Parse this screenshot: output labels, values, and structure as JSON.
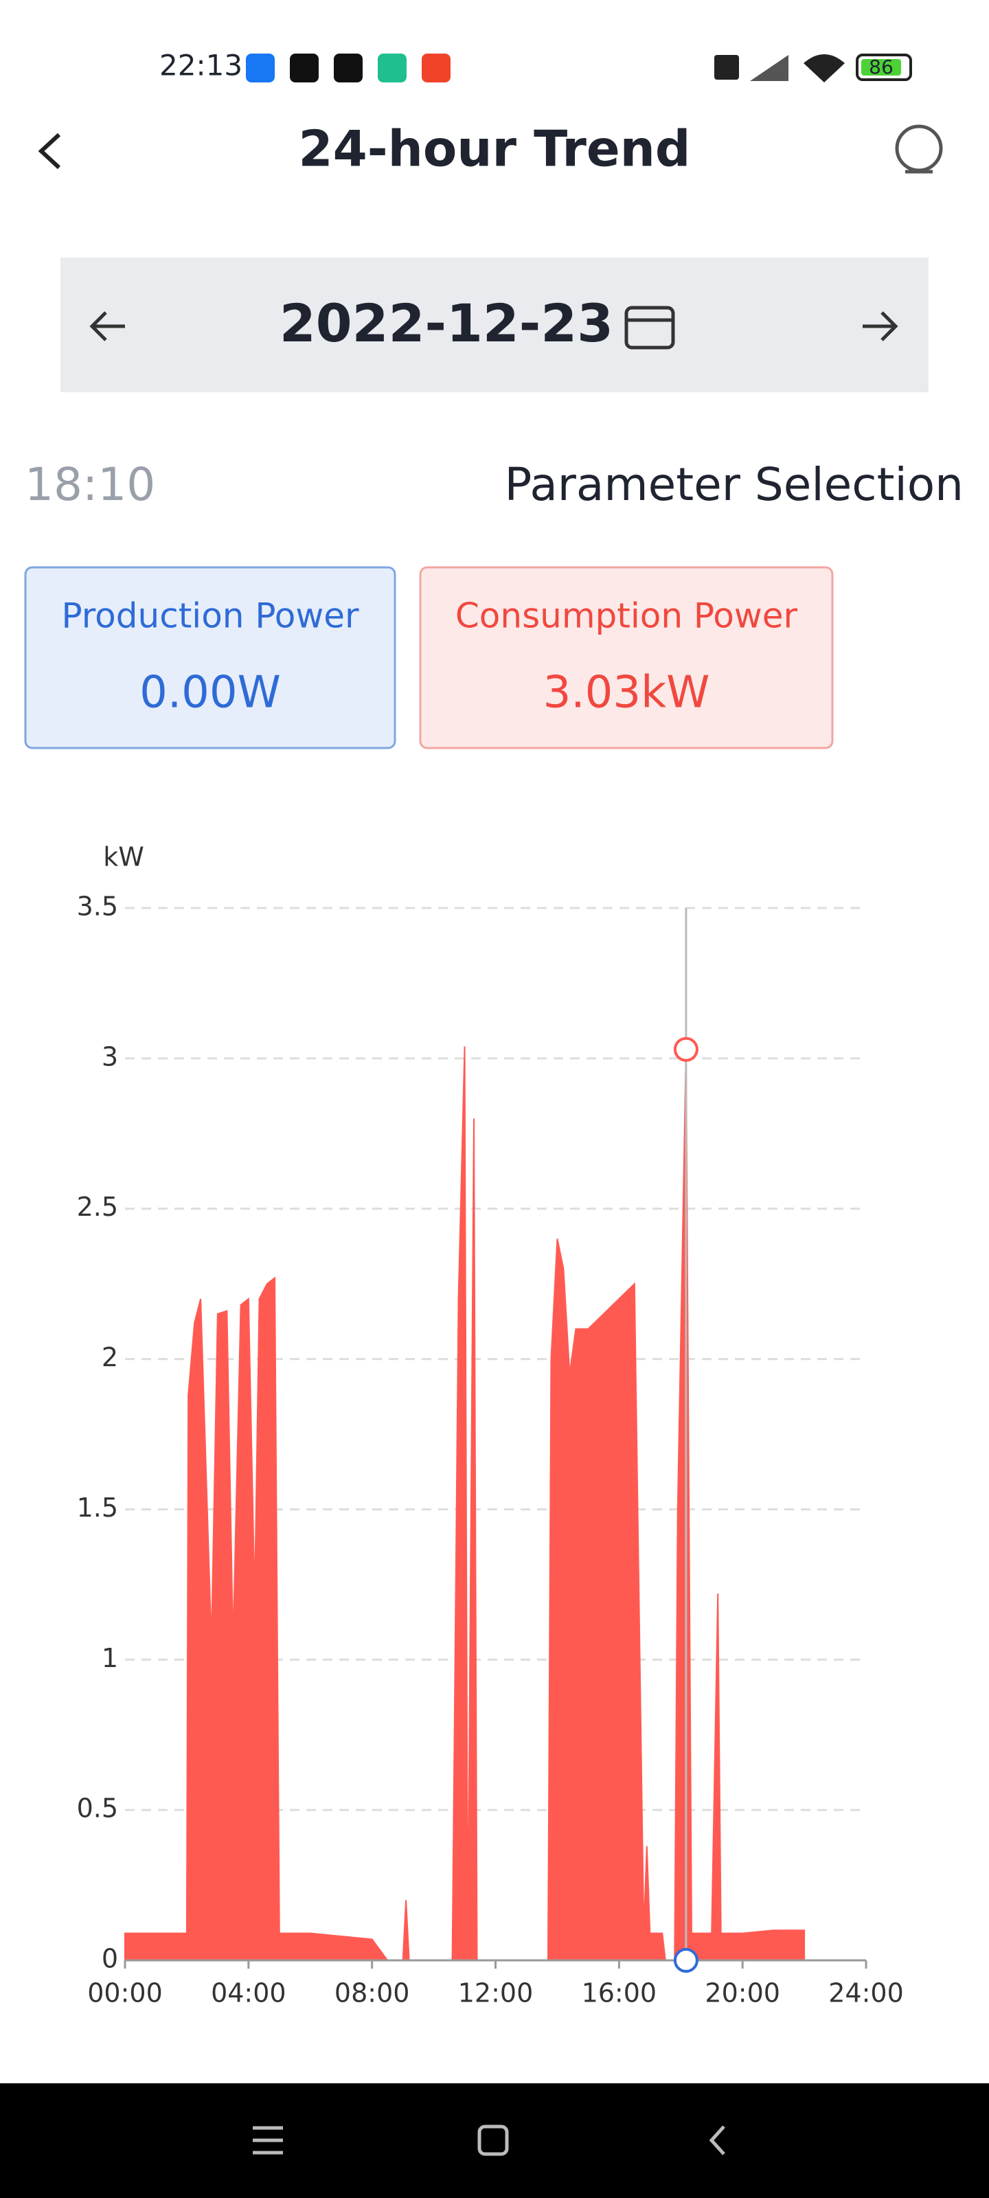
{
  "status": {
    "time": "22:13",
    "battery": "86"
  },
  "header": {
    "title": "24-hour Trend"
  },
  "date_bar": {
    "date": "2022-12-23"
  },
  "selection": {
    "time": "18:10",
    "label": "Parameter Selection"
  },
  "cards": [
    {
      "label": "Production Power",
      "value": "0.00W"
    },
    {
      "label": "Consumption Power",
      "value": "3.03kW"
    }
  ],
  "chart_data": {
    "type": "area",
    "y_label": "kW",
    "x": [
      0,
      1,
      2,
      2.05,
      2.25,
      2.45,
      2.8,
      3.0,
      3.3,
      3.5,
      3.75,
      4.0,
      4.2,
      4.35,
      4.6,
      4.85,
      5.0,
      6,
      7,
      8,
      8.5,
      9,
      9.1,
      9.2,
      10,
      10.6,
      10.8,
      11.0,
      11.1,
      11.3,
      11.4,
      12,
      13,
      13.7,
      13.8,
      14.0,
      14.2,
      14.4,
      14.6,
      15,
      15.5,
      16,
      16.5,
      16.8,
      16.9,
      17.0,
      17.4,
      17.5,
      17.8,
      17.9,
      18.17,
      18.35,
      19,
      19.2,
      19.3,
      20,
      21,
      22
    ],
    "series": [
      {
        "name": "Consumption Power",
        "color": "#ff5a52",
        "values": [
          0.09,
          0.09,
          0.09,
          1.88,
          2.12,
          2.2,
          1.05,
          2.15,
          2.16,
          1.05,
          2.18,
          2.2,
          1.2,
          2.2,
          2.25,
          2.27,
          0.09,
          0.09,
          0.08,
          0.07,
          0,
          0,
          0.2,
          0,
          0,
          0,
          2.2,
          3.04,
          0,
          2.8,
          0,
          0,
          0,
          0,
          2.0,
          2.4,
          2.3,
          1.95,
          2.1,
          2.1,
          2.15,
          2.2,
          2.25,
          0.09,
          0.38,
          0.09,
          0.09,
          0,
          0,
          1.5,
          3.03,
          0.09,
          0.09,
          1.22,
          0.09,
          0.09,
          0.1,
          0.1
        ]
      }
    ],
    "cursor": {
      "x": 18.17,
      "consumption": 3.03,
      "production": 0,
      "production_color": "#2f6bd6"
    },
    "xlim": [
      0,
      24
    ],
    "xticks": [
      {
        "value": 0,
        "label": "00:00"
      },
      {
        "value": 4,
        "label": "04:00"
      },
      {
        "value": 8,
        "label": "08:00"
      },
      {
        "value": 12,
        "label": "12:00"
      },
      {
        "value": 16,
        "label": "16:00"
      },
      {
        "value": 20,
        "label": "20:00"
      },
      {
        "value": 24,
        "label": "24:00"
      }
    ],
    "ylim": [
      0,
      3.5
    ],
    "yticks": [
      0,
      0.5,
      1,
      1.5,
      2,
      2.5,
      3,
      3.5
    ],
    "grid": true
  }
}
